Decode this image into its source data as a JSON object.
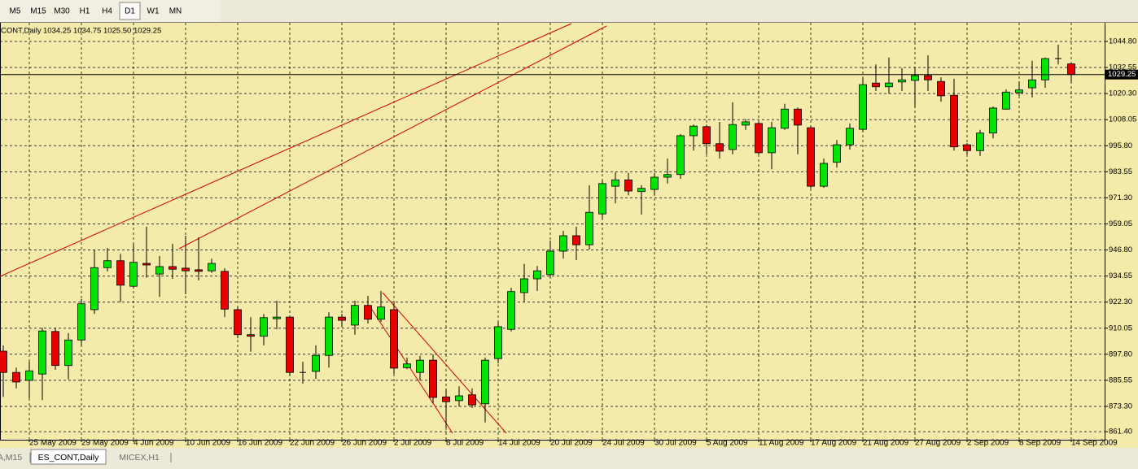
{
  "toolbar": {
    "timeframes": [
      "M5",
      "M15",
      "M30",
      "H1",
      "H4",
      "D1",
      "W1",
      "MN"
    ],
    "active_index": 5
  },
  "tabs": {
    "items": [
      "A,M15",
      "ES_CONT,Daily",
      "MICEX,H1"
    ],
    "active_index": 1
  },
  "chart_data": {
    "type": "candlestick",
    "symbol": "CONT,Daily",
    "ohlc_text": "1034.25 1034.75 1025.50 1029.25",
    "last_price": 1029.25,
    "up_color": "#00e600",
    "down_color": "#e60000",
    "grid": true,
    "categories": [
      null,
      null,
      "25 May 2009",
      null,
      null,
      null,
      "29 May 2009",
      null,
      null,
      null,
      "4 Jun 2009",
      null,
      null,
      null,
      "10 Jun 2009",
      null,
      null,
      null,
      "16 Jun 2009",
      null,
      null,
      null,
      "22 Jun 2009",
      null,
      null,
      null,
      "26 Jun 2009",
      null,
      null,
      null,
      "2 Jul 2009",
      null,
      null,
      null,
      "8 Jul 2009",
      null,
      null,
      null,
      "14 Jul 2009",
      null,
      null,
      null,
      "20 Jul 2009",
      null,
      null,
      null,
      "24 Jul 2009",
      null,
      null,
      null,
      "30 Jul 2009",
      null,
      null,
      null,
      "5 Aug 2009",
      null,
      null,
      null,
      "11 Aug 2009",
      null,
      null,
      null,
      "17 Aug 2009",
      null,
      null,
      null,
      "21 Aug 2009",
      null,
      null,
      null,
      "27 Aug 2009",
      null,
      null,
      null,
      "2 Sep 2009",
      null,
      null,
      null,
      "8 Sep 2009",
      null,
      null,
      null,
      "14 Sep 2009"
    ],
    "open": [
      899.25,
      889.25,
      885.5,
      888.5,
      908.5,
      892.5,
      904.5,
      918.75,
      938.5,
      941.75,
      929.75,
      940.5,
      935.5,
      939.0,
      938.25,
      937.5,
      937.0,
      936.75,
      918.75,
      907.0,
      906.25,
      914.5,
      915.25,
      889.25,
      889.75,
      897.25,
      915.25,
      911.5,
      920.75,
      914.25,
      918.75,
      891.5,
      889.25,
      895.0,
      877.75,
      876.0,
      878.75,
      874.5,
      895.75,
      909.5,
      926.75,
      933.25,
      935.25,
      946.25,
      953.5,
      949.25,
      963.75,
      976.75,
      979.75,
      974.25,
      975.25,
      981.0,
      982.25,
      1000.5,
      1004.75,
      996.75,
      994.0,
      1005.5,
      1006.25,
      992.5,
      1004.0,
      1013.0,
      1004.25,
      976.75,
      988.0,
      996.25,
      1003.5,
      1025.25,
      1023.5,
      1025.75,
      1026.5,
      1028.75,
      1026.0,
      1019.5,
      996.25,
      993.5,
      1001.75,
      1013.0,
      1020.75,
      1023.0,
      1026.75,
      1036.75,
      1034.25
    ],
    "high": [
      902,
      891.5,
      894.25,
      910.25,
      910.25,
      907.75,
      923.75,
      946.75,
      947.75,
      945.0,
      949.75,
      957.75,
      944.0,
      949.75,
      953.5,
      952.75,
      942.75,
      938.25,
      920.0,
      915.25,
      916.75,
      923.0,
      916.0,
      894.25,
      902.0,
      917.5,
      916.75,
      923.0,
      925.25,
      927.5,
      922.25,
      896.25,
      897.0,
      897.75,
      881.75,
      882.75,
      881.75,
      896.25,
      913.0,
      929.0,
      940.25,
      939.25,
      951.25,
      955.75,
      957.75,
      977.25,
      979.5,
      983.25,
      983.0,
      977.25,
      983.0,
      989.75,
      1001.25,
      1005.75,
      1005.75,
      1007.0,
      1016.25,
      1008.25,
      1007.0,
      1007.0,
      1015.5,
      1013.75,
      1005.0,
      989.75,
      998.5,
      1006.25,
      1027.5,
      1034.0,
      1037.25,
      1032.25,
      1032.5,
      1038.25,
      1028.0,
      1027.25,
      997.0,
      1003.25,
      1014.25,
      1022.25,
      1026.0,
      1035.75,
      1037.25,
      1043.25,
      1034.75
    ],
    "low": [
      877.75,
      881.75,
      877.0,
      876.25,
      890.5,
      886.0,
      902.0,
      916.75,
      936.75,
      922.25,
      928.75,
      933.75,
      924.75,
      933.25,
      926.0,
      932.5,
      936.0,
      915.25,
      905.25,
      899.0,
      902.0,
      909.5,
      887.75,
      884.0,
      886.25,
      891.5,
      910.75,
      907.0,
      912.25,
      913.0,
      888.5,
      890.75,
      885.5,
      874.75,
      863.25,
      873.25,
      872.5,
      865.75,
      893.5,
      908.5,
      922.5,
      927.5,
      933.75,
      942.75,
      942.0,
      947.0,
      961.25,
      968.75,
      972.5,
      963.5,
      972.5,
      978.0,
      980.25,
      993.5,
      991.75,
      989.75,
      991.75,
      1003.25,
      991.75,
      984.75,
      1003.25,
      991.75,
      975.75,
      976.0,
      985.5,
      994.0,
      1002.5,
      1021.5,
      1020.25,
      1021.5,
      1013.5,
      1021.5,
      1016.5,
      993.5,
      991.75,
      991.0,
      999.25,
      1012.75,
      1019.25,
      1018.5,
      1023.0,
      1034.0,
      1025.5
    ],
    "close": [
      889.25,
      884.75,
      890.0,
      908.75,
      892.5,
      904.5,
      921.5,
      938.5,
      941.75,
      930.25,
      941.0,
      939.75,
      939.0,
      937.75,
      937.0,
      936.75,
      940.5,
      919.0,
      907.0,
      906.25,
      915.0,
      915.25,
      889.25,
      889.25,
      897.25,
      915.25,
      913.75,
      920.75,
      914.25,
      920.0,
      891.25,
      893.25,
      895.0,
      877.5,
      875.5,
      878.25,
      874.0,
      895.0,
      910.75,
      927.25,
      933.25,
      937.0,
      946.25,
      953.5,
      949.25,
      964.5,
      978.0,
      979.75,
      974.5,
      975.75,
      981.0,
      982.25,
      1000.5,
      1005.0,
      996.75,
      993.25,
      1005.75,
      1007.0,
      992.5,
      1004.25,
      1013.0,
      1005.5,
      976.75,
      987.5,
      996.25,
      1004.0,
      1024.5,
      1023.5,
      1025.25,
      1026.75,
      1028.75,
      1026.75,
      1019.25,
      995.25,
      993.5,
      1001.75,
      1013.5,
      1021.0,
      1022.0,
      1026.75,
      1036.75,
      1036.75,
      1029.25
    ],
    "ylim": [
      858.0,
      1053.2
    ],
    "yticks": [
      {
        "value": 861.4,
        "label": "861.40"
      },
      {
        "value": 873.3,
        "label": "873.30"
      },
      {
        "value": 885.55,
        "label": "885.55"
      },
      {
        "value": 897.8,
        "label": "897.80"
      },
      {
        "value": 910.05,
        "label": "910.05"
      },
      {
        "value": 922.3,
        "label": "922.30"
      },
      {
        "value": 934.55,
        "label": "934.55"
      },
      {
        "value": 946.8,
        "label": "946.80"
      },
      {
        "value": 959.05,
        "label": "959.05"
      },
      {
        "value": 971.3,
        "label": "971.30"
      },
      {
        "value": 983.55,
        "label": "983.55"
      },
      {
        "value": 995.8,
        "label": "995.80"
      },
      {
        "value": 1008.05,
        "label": "1008.05"
      },
      {
        "value": 1020.3,
        "label": "1020.30"
      },
      {
        "value": 1032.55,
        "label": "1032.55"
      },
      {
        "value": 1044.8,
        "label": "1044.80"
      }
    ]
  }
}
